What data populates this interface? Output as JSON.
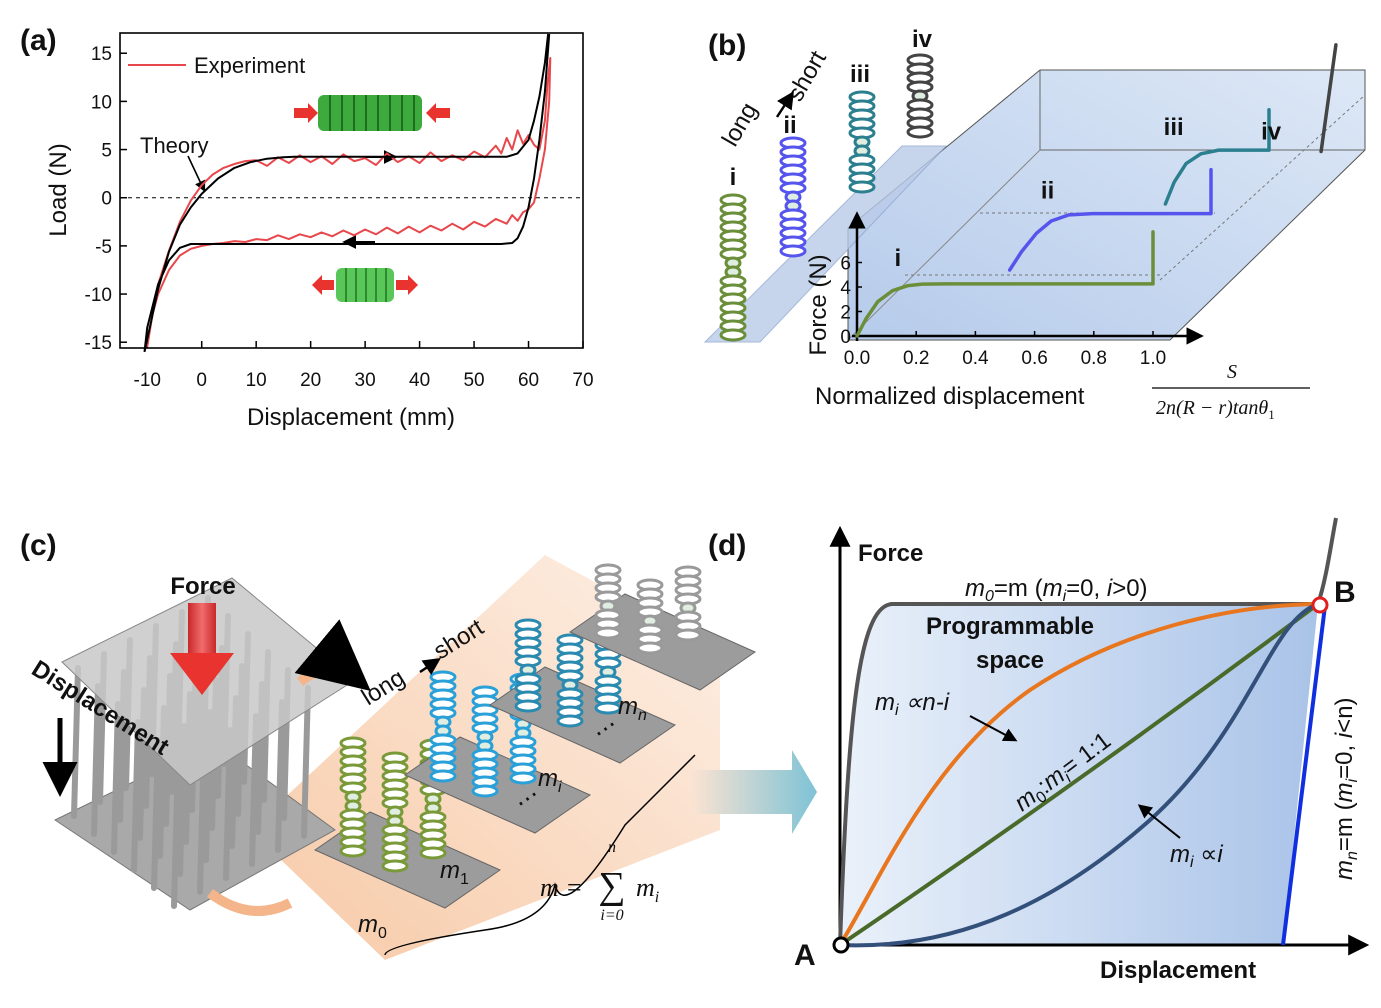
{
  "chart_data": [
    {
      "type": "line",
      "label": "(a)",
      "xlabel": "Displacement (mm)",
      "ylabel": "Load (N)",
      "xlim": [
        -15,
        70
      ],
      "ylim": [
        -15.6,
        17.1
      ],
      "xticks": [
        -10,
        0,
        10,
        20,
        30,
        40,
        50,
        60,
        70
      ],
      "yticks": [
        -15,
        -10,
        -5,
        0,
        5,
        10,
        15
      ],
      "zero_line": true,
      "legend": "upper left",
      "series": [
        {
          "name": "Experiment",
          "color": "#e8474b",
          "x": [
            -10,
            -9,
            -8,
            -6,
            -4,
            -2,
            0,
            2,
            4,
            6,
            8,
            10,
            12,
            14,
            16,
            18,
            20,
            22,
            24,
            26,
            28,
            30,
            32,
            34,
            36,
            38,
            40,
            42,
            44,
            46,
            48,
            50,
            52,
            54,
            55,
            56,
            57,
            58,
            59,
            60,
            61,
            62,
            63,
            63.5,
            64,
            63.8,
            63,
            62,
            61,
            60,
            59,
            58,
            57,
            56,
            54,
            52,
            50,
            48,
            46,
            44,
            42,
            40,
            38,
            36,
            34,
            32,
            30,
            28,
            26,
            24,
            22,
            20,
            18,
            16,
            14,
            12,
            10,
            8,
            6,
            4,
            2,
            0,
            -2,
            -4,
            -6,
            -8,
            -9,
            -10
          ],
          "values": [
            -15.5,
            -12,
            -9,
            -5.5,
            -2.5,
            -0.3,
            1.3,
            2.4,
            3.1,
            3.5,
            3.8,
            3.9,
            3.3,
            4.2,
            3.6,
            4.4,
            3.7,
            4.3,
            3.5,
            4.5,
            3.8,
            4.1,
            3.4,
            4.6,
            3.7,
            4.3,
            3.6,
            4.7,
            3.8,
            4.4,
            3.9,
            4.8,
            4.2,
            5.4,
            4.6,
            6.2,
            5.0,
            7.0,
            5.6,
            6.5,
            5.5,
            5.0,
            8,
            12,
            14.5,
            10,
            5,
            2,
            -0.5,
            -1.2,
            -1.5,
            -2.4,
            -1.8,
            -2.7,
            -2.2,
            -3.0,
            -2.5,
            -3.3,
            -2.7,
            -3.4,
            -2.9,
            -3.6,
            -3.0,
            -3.7,
            -3.1,
            -3.8,
            -3.3,
            -3.9,
            -3.4,
            -4.0,
            -3.6,
            -4.1,
            -3.8,
            -4.3,
            -3.9,
            -4.4,
            -4.3,
            -4.6,
            -4.5,
            -4.7,
            -4.8,
            -5.0,
            -5.3,
            -6.0,
            -7.5,
            -10,
            -12,
            -15.5
          ]
        },
        {
          "name": "Theory",
          "color": "#000000",
          "x": [
            -10.5,
            -8,
            -6,
            -4,
            -2,
            0,
            3,
            6,
            9,
            12,
            15,
            17,
            56,
            58,
            60,
            61,
            62,
            63,
            63.6,
            null,
            63.8,
            63,
            62,
            61,
            60,
            59,
            58,
            57,
            55,
            -2,
            -4,
            -6,
            -8,
            -10,
            -10.5
          ],
          "values": [
            -16,
            -9.5,
            -5.6,
            -2.8,
            -1.0,
            0.4,
            2.0,
            3.1,
            3.7,
            4.05,
            4.2,
            4.25,
            4.25,
            4.6,
            6,
            8,
            10.5,
            14,
            17,
            null,
            17,
            11,
            6,
            2,
            -1,
            -3,
            -4.2,
            -4.7,
            -4.8,
            -4.8,
            -5.2,
            -6.5,
            -9,
            -13.5,
            -16
          ]
        }
      ]
    },
    {
      "type": "line3d",
      "label": "(b)",
      "xlabel": "Normalized displacement",
      "ylabel": "Force (N)",
      "formula_numerator": "S",
      "formula_denominator": "2n(R − r)tanθ",
      "formula_subscript": "1",
      "annotations": [
        "long",
        "short"
      ],
      "xlim": [
        0,
        1.16
      ],
      "ylim": [
        0,
        9.9
      ],
      "xticks": [
        {
          "value": 0,
          "label": "0.0"
        },
        {
          "value": 0.2,
          "label": "0.2"
        },
        {
          "value": 0.4,
          "label": "0.4"
        },
        {
          "value": 0.6,
          "label": "0.6"
        },
        {
          "value": 0.8,
          "label": "0.8"
        },
        {
          "value": 1,
          "label": "1.0"
        }
      ],
      "yticks": [
        0,
        2,
        4,
        6
      ],
      "series": [
        {
          "name": "i",
          "color": "#6b8e3a",
          "x": [
            0,
            0.03,
            0.07,
            0.12,
            0.17,
            0.22,
            0.3,
            1.0,
            1.0
          ],
          "values": [
            0,
            1.4,
            2.8,
            3.7,
            4.1,
            4.24,
            4.25,
            4.25,
            8.5
          ]
        },
        {
          "name": "ii",
          "color": "#5555ee",
          "x": [
            0.32,
            0.36,
            0.41,
            0.46,
            0.52,
            0.6,
            1.0,
            1.0
          ],
          "values": [
            0,
            1.5,
            3.0,
            4.0,
            4.5,
            4.6,
            4.6,
            8.2
          ]
        },
        {
          "name": "iii",
          "color": "#2b7f8f",
          "x": [
            0.65,
            0.68,
            0.72,
            0.77,
            0.83,
            1.0,
            1.0
          ],
          "values": [
            0,
            1.8,
            3.3,
            4.1,
            4.4,
            4.4,
            7.7
          ]
        },
        {
          "name": "iv",
          "color": "#444444",
          "x": [
            0.98,
            1.03
          ],
          "values": [
            -1.1,
            7.6
          ]
        }
      ]
    }
  ],
  "panel_c": {
    "label": "(c)",
    "force": "Force",
    "displacement": "Displacement",
    "long": "long",
    "short": "short",
    "groups": [
      {
        "m": "m",
        "sub": "0"
      },
      {
        "m": "m",
        "sub": "1"
      },
      {
        "m": "m",
        "sub": "i"
      },
      {
        "m": "m",
        "sub": "n"
      }
    ],
    "dots": "⋯",
    "formula": {
      "lhs": "m =",
      "sum": "∑",
      "upper": "n",
      "lower": "i=0",
      "term": "m",
      "sub": "i"
    }
  },
  "panel_d": {
    "label": "(d)",
    "y_axis": "Force",
    "x_axis": "Displacement",
    "point_a": "A",
    "point_b": "B",
    "top_label": [
      "m",
      "0",
      "=m (",
      "m",
      "i",
      "=0, ",
      "i",
      ">0)"
    ],
    "region": [
      "Programmable",
      "space"
    ],
    "orange_label": [
      "m",
      "i",
      " ∝n-i"
    ],
    "green_label": [
      "m",
      "0",
      ":",
      "m",
      "i",
      "= 1:1"
    ],
    "blue_label": [
      "m",
      "i",
      " ∝",
      "i"
    ],
    "right_label": [
      "m",
      "n",
      "=m (",
      "m",
      "i",
      "=0, ",
      "i",
      "<n)"
    ]
  }
}
